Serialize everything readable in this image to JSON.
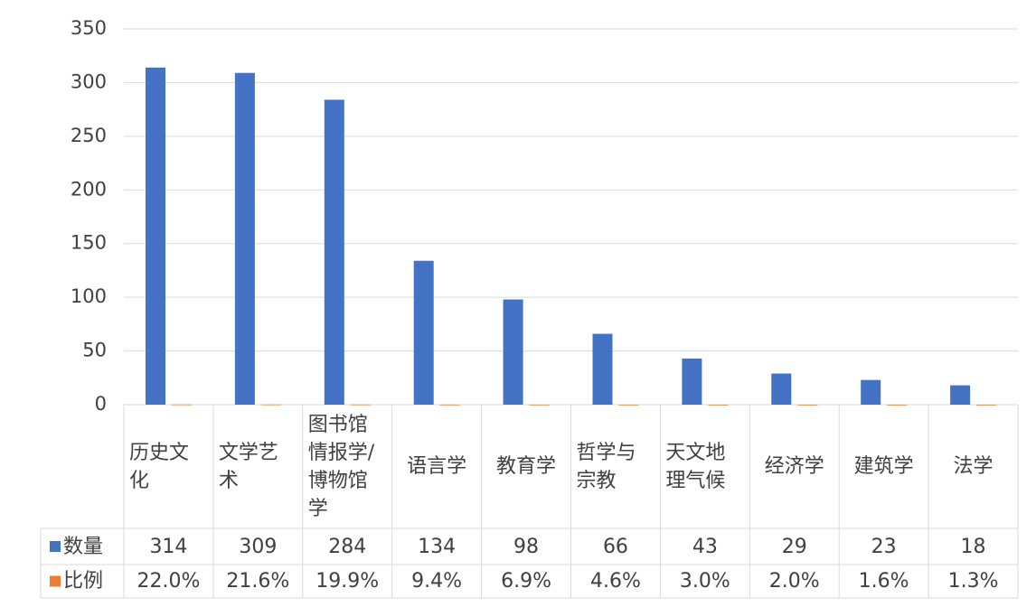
{
  "chart_data": {
    "type": "bar",
    "categories": [
      "历史文化",
      "文学艺术",
      "图书馆情报学/博物馆学",
      "语言学",
      "教育学",
      "哲学与宗教",
      "天文地理气候",
      "经济学",
      "建筑学",
      "法学"
    ],
    "series": [
      {
        "name": "数量",
        "color": "#4472c4",
        "values": [
          314,
          309,
          284,
          134,
          98,
          66,
          43,
          29,
          23,
          18
        ]
      },
      {
        "name": "比例",
        "color": "#ed7d31",
        "values": [
          0.22,
          0.216,
          0.199,
          0.094,
          0.069,
          0.046,
          0.03,
          0.02,
          0.016,
          0.013
        ],
        "value_labels": [
          "22.0%",
          "21.6%",
          "19.9%",
          "9.4%",
          "6.9%",
          "4.6%",
          "3.0%",
          "2.0%",
          "1.6%",
          "1.3%"
        ]
      }
    ],
    "ylim": [
      0,
      350
    ],
    "yticks": [
      0,
      50,
      100,
      150,
      200,
      250,
      300,
      350
    ],
    "grid": true,
    "data_table": true
  }
}
